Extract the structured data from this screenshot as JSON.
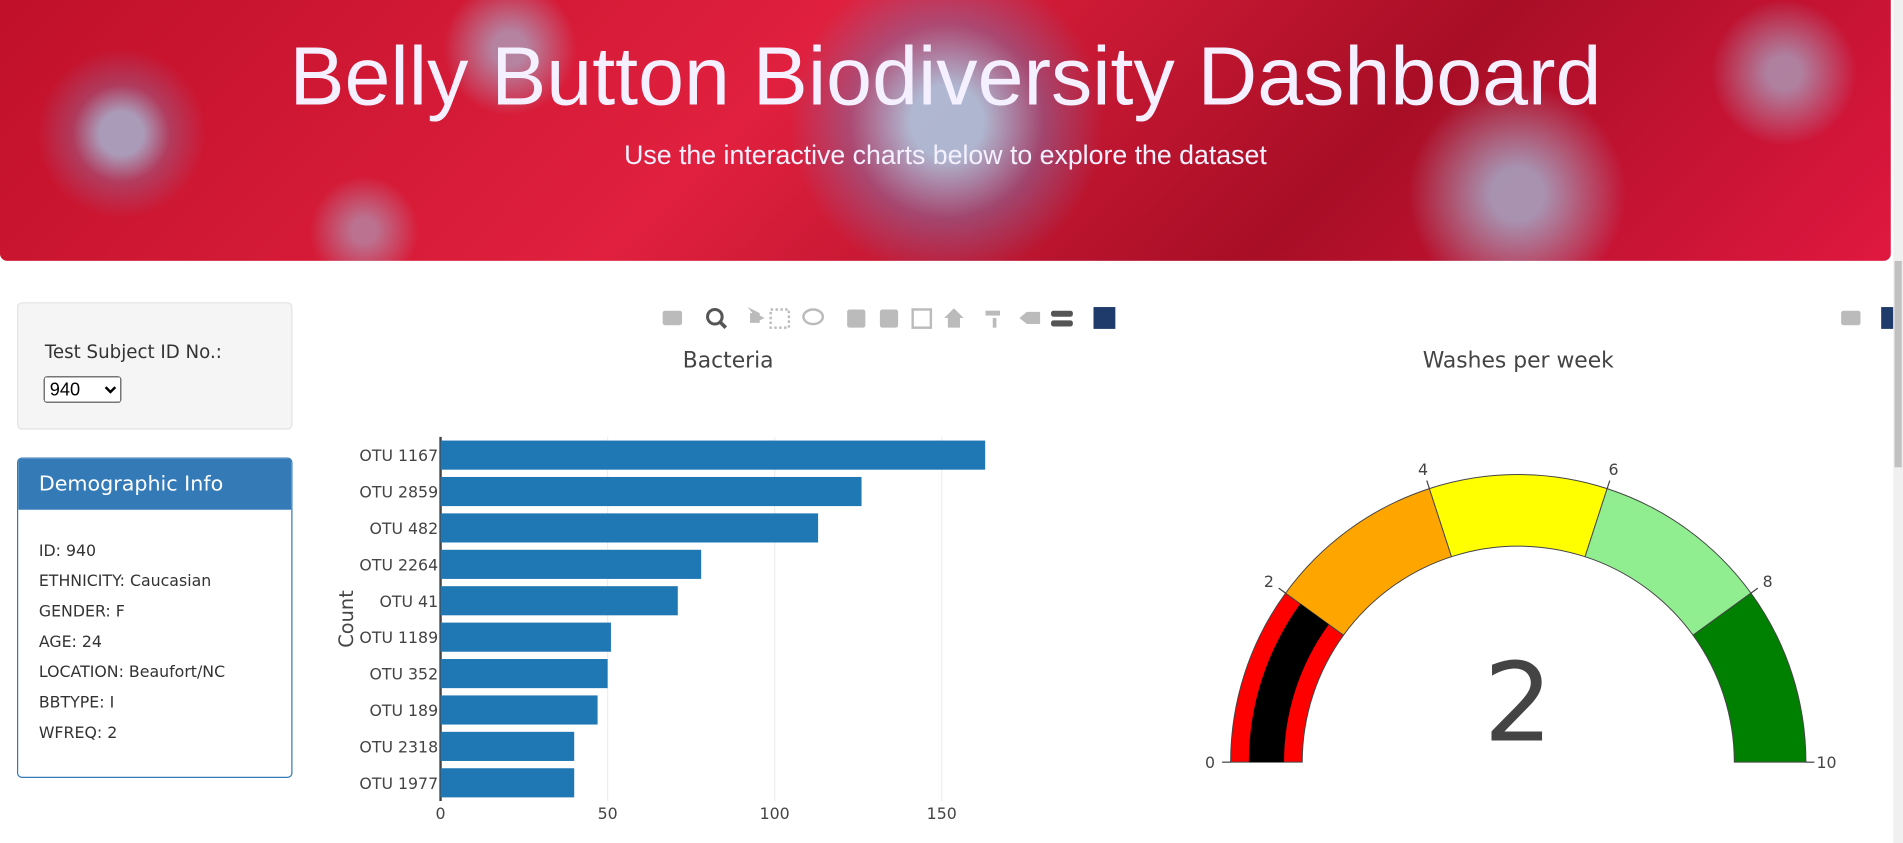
{
  "header": {
    "title": "Belly Button Biodiversity Dashboard",
    "subtitle": "Use the interactive charts below to explore the dataset"
  },
  "selector": {
    "label": "Test Subject ID No.:",
    "selected": "940"
  },
  "demographics": {
    "title": "Demographic Info",
    "items": [
      "ID: 940",
      "ETHNICITY: Caucasian",
      "GENDER: F",
      "AGE: 24",
      "LOCATION: Beaufort/NC",
      "BBTYPE: I",
      "WFREQ: 2"
    ]
  },
  "chart_data": [
    {
      "type": "hbar",
      "title": "Bacteria",
      "ylabel": "Count",
      "color": "#1f77b4",
      "categories": [
        "OTU 1167",
        "OTU 2859",
        "OTU 482",
        "OTU 2264",
        "OTU 41",
        "OTU 1189",
        "OTU 352",
        "OTU 189",
        "OTU 2318",
        "OTU 1977"
      ],
      "values": [
        163,
        126,
        113,
        78,
        71,
        51,
        50,
        47,
        40,
        40
      ],
      "xlim": [
        0,
        166
      ],
      "xticks": [
        0,
        50,
        100,
        150
      ],
      "grid": true
    },
    {
      "type": "gauge",
      "title": "Washes per week",
      "value": 2,
      "bar_color": "black",
      "xlim": [
        0,
        10
      ],
      "xticks": [
        0,
        2,
        4,
        6,
        8,
        10
      ],
      "steps": [
        {
          "range": [
            0,
            2
          ],
          "color": "red"
        },
        {
          "range": [
            2,
            4
          ],
          "color": "orange"
        },
        {
          "range": [
            4,
            6
          ],
          "color": "yellow"
        },
        {
          "range": [
            6,
            8
          ],
          "color": "lightgreen"
        },
        {
          "range": [
            8,
            10
          ],
          "color": "green"
        }
      ]
    }
  ]
}
